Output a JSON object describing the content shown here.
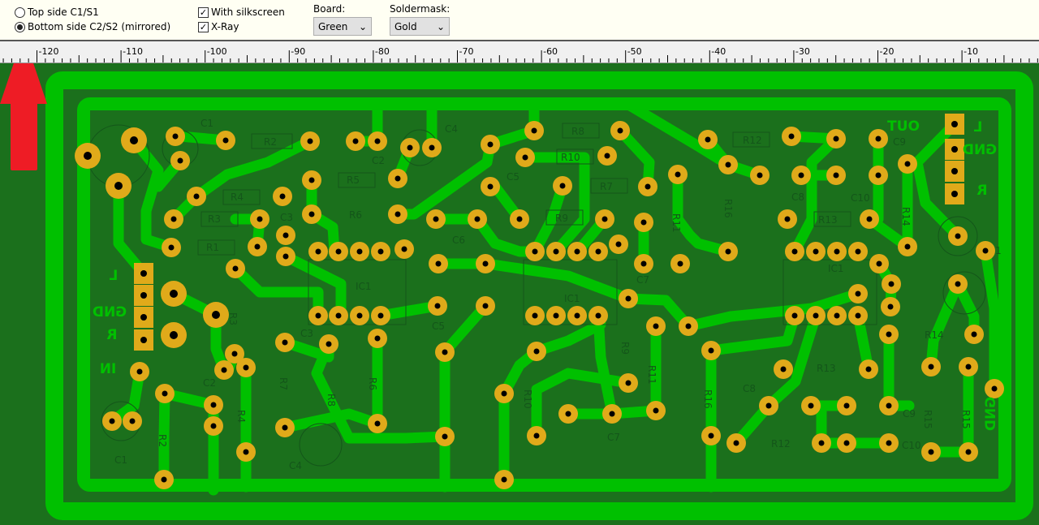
{
  "toolbar": {
    "side_options": [
      {
        "label": "Top side C1/S1",
        "selected": false
      },
      {
        "label": "Bottom side C2/S2 (mirrored)",
        "selected": true
      }
    ],
    "checkboxes": [
      {
        "label": "With silkscreen",
        "checked": true
      },
      {
        "label": "X-Ray",
        "checked": true
      }
    ],
    "board": {
      "label": "Board:",
      "value": "Green"
    },
    "soldermask": {
      "label": "Soldermask:",
      "value": "Gold"
    }
  },
  "ruler": {
    "labels": [
      "-120",
      "-110",
      "-100",
      "-90",
      "-80",
      "-70",
      "-60",
      "-50",
      "-40",
      "-30",
      "-20",
      "-10"
    ]
  },
  "colors": {
    "board": "#1b701c",
    "trace": "#00c000",
    "pad": "#e0aa1a",
    "arrow": "#ee1c25",
    "silkscreen": "#14561a"
  },
  "connectors": {
    "left": [
      "L",
      "GND",
      "R",
      "IN"
    ],
    "right": [
      "OUT",
      "L",
      "GND",
      "R"
    ],
    "right_bottom_gnd": "GND"
  },
  "components": [
    "C1",
    "R2",
    "C2",
    "C4",
    "R5",
    "R4",
    "R3",
    "C3",
    "R6",
    "C5",
    "C6",
    "R1",
    "R8",
    "R10",
    "R7",
    "R9",
    "R12",
    "C9",
    "C8",
    "C10",
    "R16",
    "R11",
    "R13",
    "R14",
    "C11",
    "IC1",
    "IC1",
    "IC1",
    "C7",
    "R3",
    "C3",
    "C5",
    "R6",
    "R9",
    "R11",
    "R16",
    "C2",
    "R4",
    "C1",
    "C4",
    "C7",
    "R12",
    "C8",
    "C9",
    "C10",
    "R13",
    "R14",
    "R15",
    "R15",
    "R2",
    "R7",
    "R10",
    "R8"
  ]
}
